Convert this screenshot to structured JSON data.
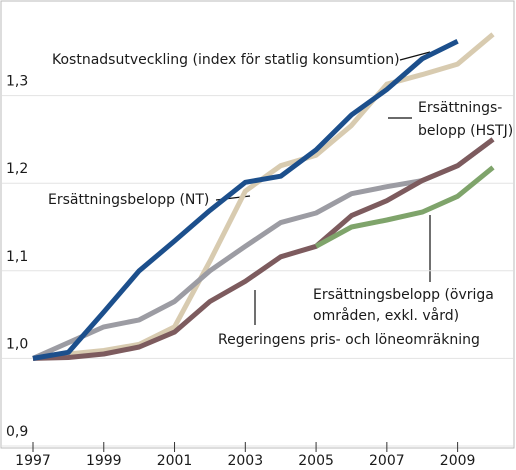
{
  "chart_data": {
    "type": "line",
    "x": [
      1997,
      1998,
      1999,
      2000,
      2001,
      2002,
      2003,
      2004,
      2005,
      2006,
      2007,
      2008,
      2009,
      2010
    ],
    "xlim": [
      1997,
      2010
    ],
    "xticks": [
      1997,
      1999,
      2001,
      2003,
      2005,
      2007,
      2009
    ],
    "ylim": [
      0.9,
      1.4
    ],
    "yticks": [
      {
        "value": 0.9,
        "label": "0,9"
      },
      {
        "value": 1.0,
        "label": "1,0"
      },
      {
        "value": 1.1,
        "label": "1,1"
      },
      {
        "value": 1.2,
        "label": "1,2"
      },
      {
        "value": 1.3,
        "label": "1,3"
      }
    ],
    "grid": true,
    "series": [
      {
        "label_lines": [
          "Ersättnings-",
          "belopp (HSTJ)"
        ],
        "color": "#d8cbb0",
        "values": [
          1.0,
          1.005,
          1.009,
          1.016,
          1.036,
          1.111,
          1.191,
          1.22,
          1.232,
          1.266,
          1.313,
          1.324,
          1.336,
          1.37
        ]
      },
      {
        "label_lines": [
          "Ersättningsbelopp (NT)"
        ],
        "color": "#9c9ca3",
        "values": [
          1.0,
          1.018,
          1.036,
          1.044,
          1.065,
          1.1,
          1.128,
          1.155,
          1.166,
          1.188,
          1.196,
          1.203,
          1.22,
          1.25
        ]
      },
      {
        "label_lines": [
          "Regeringens pris- och löneomräkning"
        ],
        "color": "#7d5b5e",
        "values": [
          1.0,
          1.001,
          1.005,
          1.013,
          1.03,
          1.065,
          1.088,
          1.116,
          1.128,
          1.163,
          1.18,
          1.203,
          1.22,
          1.25
        ]
      },
      {
        "label_lines": [
          "Ersättningsbelopp (övriga",
          "områden, exkl. vård)"
        ],
        "color": "#7fa46b",
        "values": [
          null,
          null,
          null,
          null,
          null,
          null,
          null,
          null,
          1.128,
          1.15,
          1.158,
          1.167,
          1.185,
          1.218
        ]
      },
      {
        "label_lines": [
          "Kostnadsutveckling (index för statlig konsumtion)"
        ],
        "color": "#1c4f8c",
        "values": [
          1.0,
          1.007,
          1.053,
          1.1,
          1.134,
          1.169,
          1.201,
          1.208,
          1.238,
          1.278,
          1.307,
          1.342,
          1.362,
          null
        ]
      }
    ]
  }
}
